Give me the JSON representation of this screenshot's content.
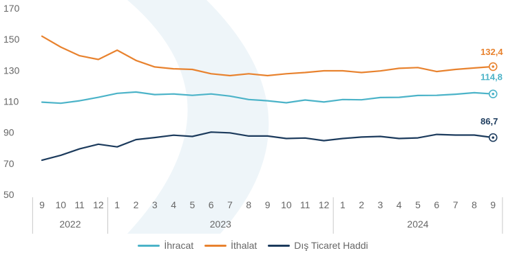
{
  "chart_data": {
    "type": "line",
    "x": [
      "9",
      "10",
      "11",
      "12",
      "1",
      "2",
      "3",
      "4",
      "5",
      "6",
      "7",
      "8",
      "9",
      "10",
      "11",
      "12",
      "1",
      "2",
      "3",
      "4",
      "5",
      "6",
      "7",
      "8",
      "9"
    ],
    "years": [
      {
        "label": "2022",
        "from": 0,
        "to": 3
      },
      {
        "label": "2023",
        "from": 4,
        "to": 15
      },
      {
        "label": "2024",
        "from": 16,
        "to": 24
      }
    ],
    "ylim": [
      50,
      170
    ],
    "yticks": [
      50,
      70,
      90,
      110,
      130,
      150,
      170
    ],
    "series": [
      {
        "name": "İhracat",
        "color": "#4BB3C8",
        "end_label": "114,8",
        "values": [
          109.5,
          108.8,
          110.4,
          112.6,
          115.2,
          116.0,
          114.4,
          114.8,
          113.9,
          114.8,
          113.4,
          111.2,
          110.4,
          109.1,
          110.9,
          109.6,
          111.2,
          111.0,
          112.5,
          112.6,
          113.8,
          113.9,
          114.6,
          115.6,
          114.8
        ]
      },
      {
        "name": "İthalat",
        "color": "#E8822E",
        "end_label": "132,4",
        "values": [
          152.0,
          145.0,
          139.4,
          137.0,
          143.0,
          136.4,
          132.2,
          131.0,
          130.6,
          127.8,
          126.6,
          127.8,
          126.6,
          127.8,
          128.6,
          129.7,
          129.7,
          128.6,
          129.6,
          131.3,
          131.8,
          129.2,
          130.6,
          131.5,
          132.4
        ]
      },
      {
        "name": "Dış Ticaret Haddi",
        "color": "#1B3A5C",
        "end_label": "86,7",
        "values": [
          72.1,
          75.3,
          79.4,
          82.4,
          80.7,
          85.4,
          86.7,
          88.2,
          87.4,
          90.2,
          89.7,
          87.7,
          87.7,
          86.1,
          86.4,
          84.7,
          86.1,
          87.0,
          87.4,
          86.1,
          86.5,
          88.7,
          88.3,
          88.3,
          86.7
        ]
      }
    ],
    "legend": "bottom-center",
    "grid": false
  }
}
